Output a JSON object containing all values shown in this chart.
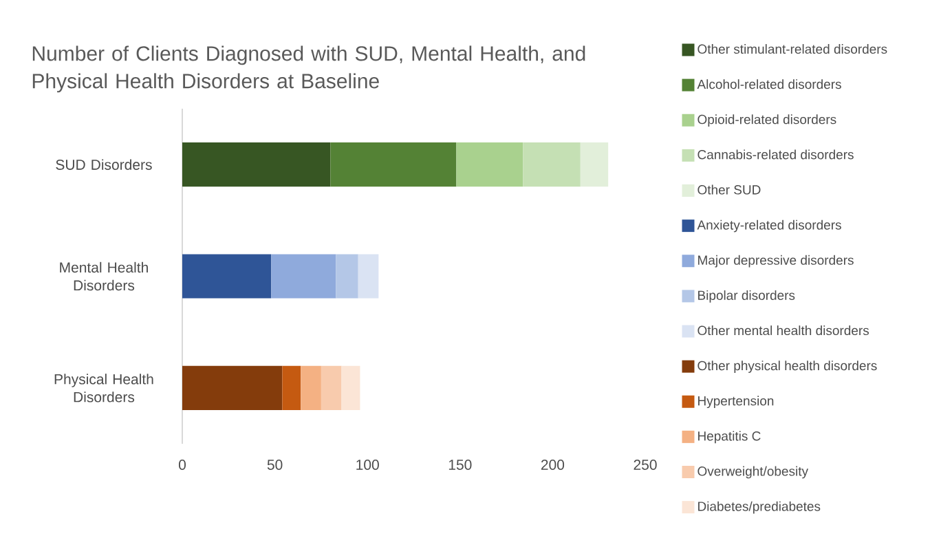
{
  "chart_data": {
    "type": "bar",
    "orientation": "horizontal",
    "stacked": true,
    "title": "Number of Clients Diagnosed with SUD, Mental Health, and Physical Health Disorders at Baseline",
    "categories": [
      "SUD Disorders",
      "Mental Health Disorders",
      "Physical Health Disorders"
    ],
    "series": [
      {
        "name": "Other stimulant-related disorders",
        "color": "#375623",
        "values": [
          80,
          null,
          null
        ]
      },
      {
        "name": "Alcohol-related disorders",
        "color": "#548235",
        "values": [
          68,
          null,
          null
        ]
      },
      {
        "name": "Opioid-related disorders",
        "color": "#a9d18e",
        "values": [
          36,
          null,
          null
        ]
      },
      {
        "name": "Cannabis-related disorders",
        "color": "#c5e0b4",
        "values": [
          31,
          null,
          null
        ]
      },
      {
        "name": "Other SUD",
        "color": "#e2efda",
        "values": [
          15,
          null,
          null
        ]
      },
      {
        "name": "Anxiety-related disorders",
        "color": "#2f5597",
        "values": [
          null,
          48,
          null
        ]
      },
      {
        "name": "Major depressive disorders",
        "color": "#8faadc",
        "values": [
          null,
          35,
          null
        ]
      },
      {
        "name": "Bipolar disorders",
        "color": "#b4c7e7",
        "values": [
          null,
          12,
          null
        ]
      },
      {
        "name": "Other mental health disorders",
        "color": "#dae3f3",
        "values": [
          null,
          11,
          null
        ]
      },
      {
        "name": "Other physical health disorders",
        "color": "#843c0c",
        "values": [
          null,
          null,
          54
        ]
      },
      {
        "name": "Hypertension",
        "color": "#c55a11",
        "values": [
          null,
          null,
          10
        ]
      },
      {
        "name": "Hepatitis C",
        "color": "#f4b183",
        "values": [
          null,
          null,
          11
        ]
      },
      {
        "name": "Overweight/obesity",
        "color": "#f8cbad",
        "values": [
          null,
          null,
          11
        ]
      },
      {
        "name": "Diabetes/prediabetes",
        "color": "#fbe5d6",
        "values": [
          null,
          null,
          10
        ]
      }
    ],
    "xlim": [
      0,
      250
    ],
    "xticks": [
      0,
      50,
      100,
      150,
      200,
      250
    ],
    "legend": "right",
    "grid": false
  }
}
